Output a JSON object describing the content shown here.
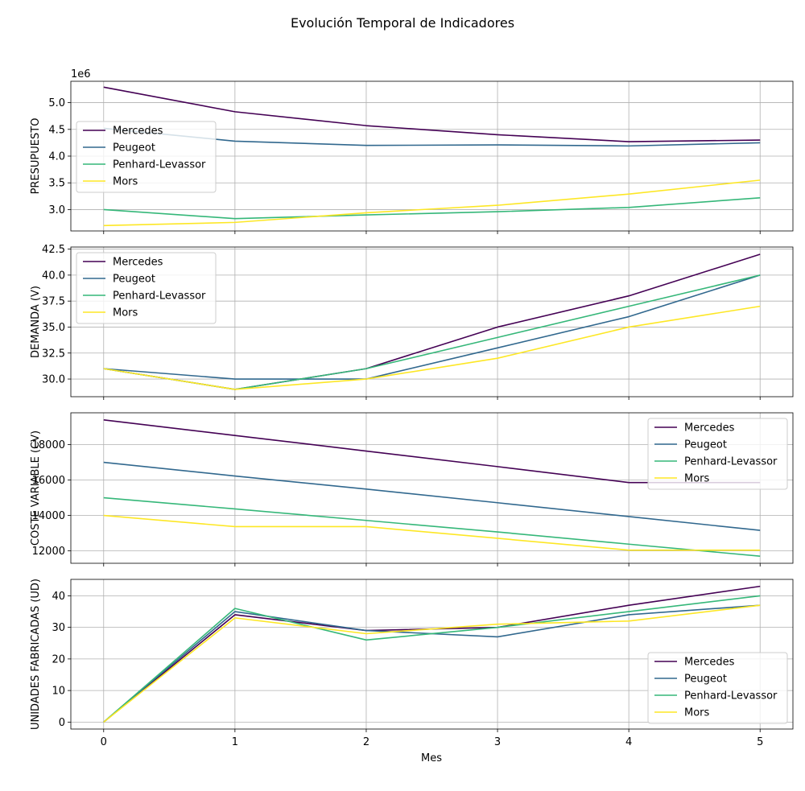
{
  "title": "Evolución Temporal de Indicadores",
  "chart_data": {
    "type": "line",
    "title": "Evolución Temporal de Indicadores",
    "xlabel": "Mes",
    "x": [
      0,
      1,
      2,
      3,
      4,
      5
    ],
    "x_ticks": [
      "0",
      "1",
      "2",
      "3",
      "4",
      "5"
    ],
    "colors": {
      "Mercedes": "#440154",
      "Peugeot": "#31688e",
      "Penhard-Levassor": "#35b779",
      "Mors": "#fde725"
    },
    "panels": [
      {
        "ylabel": "PRESUPUESTO",
        "offset_label": "1e6",
        "ylim": [
          2.6,
          5.4
        ],
        "yticks": [
          3.0,
          3.5,
          4.0,
          4.5,
          5.0
        ],
        "ytick_labels": [
          "3.0",
          "3.5",
          "4.0",
          "4.5",
          "5.0"
        ],
        "legend": "upper-left-middle",
        "grid": true,
        "series": [
          {
            "name": "Mercedes",
            "values": [
              5.29,
              4.83,
              4.57,
              4.4,
              4.27,
              4.3
            ]
          },
          {
            "name": "Peugeot",
            "values": [
              4.52,
              4.28,
              4.2,
              4.21,
              4.19,
              4.25
            ]
          },
          {
            "name": "Penhard-Levassor",
            "values": [
              3.0,
              2.83,
              2.9,
              2.96,
              3.04,
              3.22
            ]
          },
          {
            "name": "Mors",
            "values": [
              2.7,
              2.76,
              2.94,
              3.08,
              3.29,
              3.55
            ]
          }
        ]
      },
      {
        "ylabel": "DEMANDA (V)",
        "ylim": [
          28.3,
          42.7
        ],
        "yticks": [
          30.0,
          32.5,
          35.0,
          37.5,
          40.0,
          42.5
        ],
        "ytick_labels": [
          "30.0",
          "32.5",
          "35.0",
          "37.5",
          "40.0",
          "42.5"
        ],
        "legend": "upper-left",
        "grid": true,
        "series": [
          {
            "name": "Mercedes",
            "values": [
              31,
              29,
              31,
              35,
              38,
              42
            ]
          },
          {
            "name": "Peugeot",
            "values": [
              31,
              30,
              30,
              33,
              36,
              40
            ]
          },
          {
            "name": "Penhard-Levassor",
            "values": [
              31,
              29,
              31,
              34,
              37,
              40
            ]
          },
          {
            "name": "Mors",
            "values": [
              31,
              29,
              30,
              32,
              35,
              37
            ]
          }
        ]
      },
      {
        "ylabel": "COSTE VARIABLE (CV)",
        "ylim": [
          11300,
          19800
        ],
        "yticks": [
          12000,
          14000,
          16000,
          18000
        ],
        "ytick_labels": [
          "12000",
          "14000",
          "16000",
          "18000"
        ],
        "legend": "upper-right",
        "grid": true,
        "series": [
          {
            "name": "Mercedes",
            "values": [
              19400,
              18520,
              17640,
              16760,
              15860,
              15860
            ]
          },
          {
            "name": "Peugeot",
            "values": [
              17000,
              16230,
              15490,
              14720,
              13940,
              13160
            ]
          },
          {
            "name": "Penhard-Levassor",
            "values": [
              15000,
              14370,
              13720,
              13070,
              12380,
              11700
            ]
          },
          {
            "name": "Mors",
            "values": [
              14000,
              13370,
              13370,
              12710,
              12040,
              12040
            ]
          }
        ]
      },
      {
        "ylabel": "UNIDADES FABRICADAS (UD)",
        "ylim": [
          -2.2,
          45.2
        ],
        "yticks": [
          0,
          10,
          20,
          30,
          40
        ],
        "ytick_labels": [
          "0",
          "10",
          "20",
          "30",
          "40"
        ],
        "legend": "lower-right",
        "grid": true,
        "series": [
          {
            "name": "Mercedes",
            "values": [
              0,
              34,
              29,
              30,
              37,
              43
            ]
          },
          {
            "name": "Peugeot",
            "values": [
              0,
              35,
              29,
              27,
              34,
              37
            ]
          },
          {
            "name": "Penhard-Levassor",
            "values": [
              0,
              36,
              26,
              30,
              35,
              40
            ]
          },
          {
            "name": "Mors",
            "values": [
              0,
              33,
              28,
              31,
              32,
              37
            ]
          }
        ]
      }
    ]
  }
}
